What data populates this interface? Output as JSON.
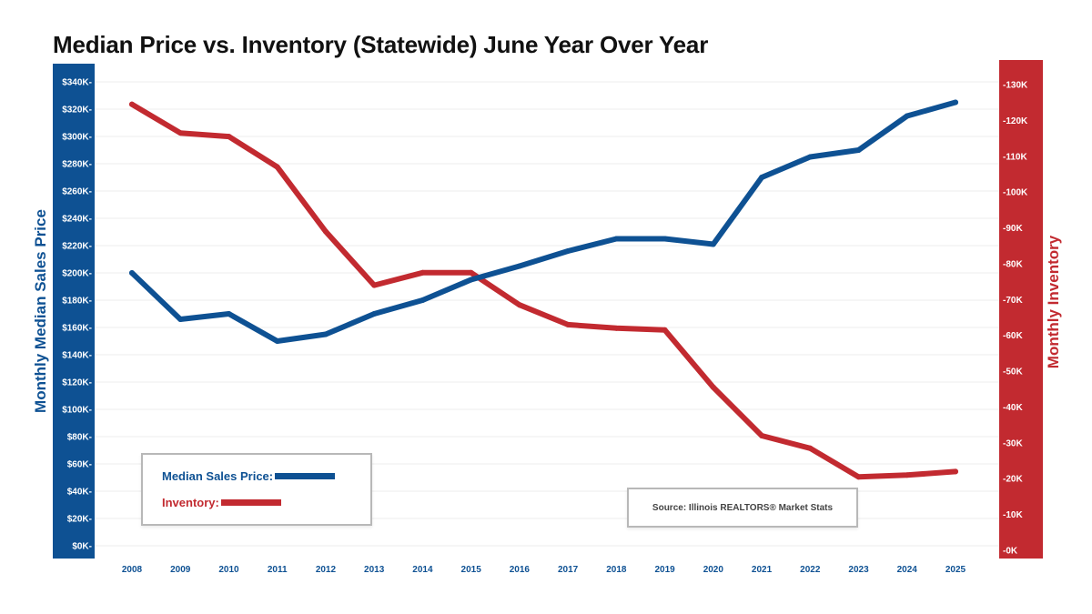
{
  "chart_data": {
    "type": "line",
    "title": "Median Price vs. Inventory (Statewide) June Year Over Year",
    "xlabel": "",
    "categories": [
      "2008",
      "2009",
      "2010",
      "2011",
      "2012",
      "2013",
      "2014",
      "2015",
      "2016",
      "2017",
      "2018",
      "2019",
      "2020",
      "2021",
      "2022",
      "2023",
      "2024",
      "2025"
    ],
    "y_left": {
      "label": "Monthly Median Sales Price",
      "range": [
        0,
        340000
      ],
      "ticks": [
        0,
        20000,
        40000,
        60000,
        80000,
        100000,
        120000,
        140000,
        160000,
        180000,
        200000,
        220000,
        240000,
        260000,
        280000,
        300000,
        320000,
        340000
      ],
      "tick_labels": [
        "$0K-",
        "$20K-",
        "$40K-",
        "$60K-",
        "$80K-",
        "$100K-",
        "$120K-",
        "$140K-",
        "$160K-",
        "$180K-",
        "$200K-",
        "$220K-",
        "$240K-",
        "$260K-",
        "$280K-",
        "$300K-",
        "$320K-",
        "$340K-"
      ]
    },
    "y_right": {
      "label": "Monthly Inventory",
      "range": [
        0,
        130000
      ],
      "ticks": [
        0,
        10000,
        20000,
        30000,
        40000,
        50000,
        60000,
        70000,
        80000,
        90000,
        100000,
        110000,
        120000,
        130000
      ],
      "tick_labels": [
        "-0K",
        "-10K",
        "-20K",
        "-30K",
        "-40K",
        "-50K",
        "-60K",
        "-70K",
        "-80K",
        "-90K",
        "-100K",
        "-110K",
        "-120K",
        "-130K"
      ]
    },
    "series": [
      {
        "name": "Median Sales Price",
        "axis": "left",
        "color": "#0e5193",
        "values": [
          200000,
          166000,
          170000,
          150000,
          155000,
          170000,
          180000,
          195000,
          205000,
          216000,
          225000,
          225000,
          221000,
          270000,
          285000,
          290000,
          315000,
          325000
        ]
      },
      {
        "name": "Inventory",
        "axis": "right",
        "color": "#c22a30",
        "values": [
          124500,
          116500,
          115500,
          107000,
          89000,
          74000,
          77500,
          77500,
          68500,
          63000,
          62000,
          61500,
          45500,
          32000,
          28500,
          20500,
          21000,
          22000
        ]
      }
    ],
    "grid": true,
    "legend": {
      "placement": "bottom-left",
      "entries": [
        {
          "label": "Median Sales Price:",
          "color": "#0e5193"
        },
        {
          "label": "Inventory:",
          "color": "#c22a30"
        }
      ]
    },
    "annotations": [
      "Source: Illinois REALTORS® Market Stats"
    ]
  }
}
